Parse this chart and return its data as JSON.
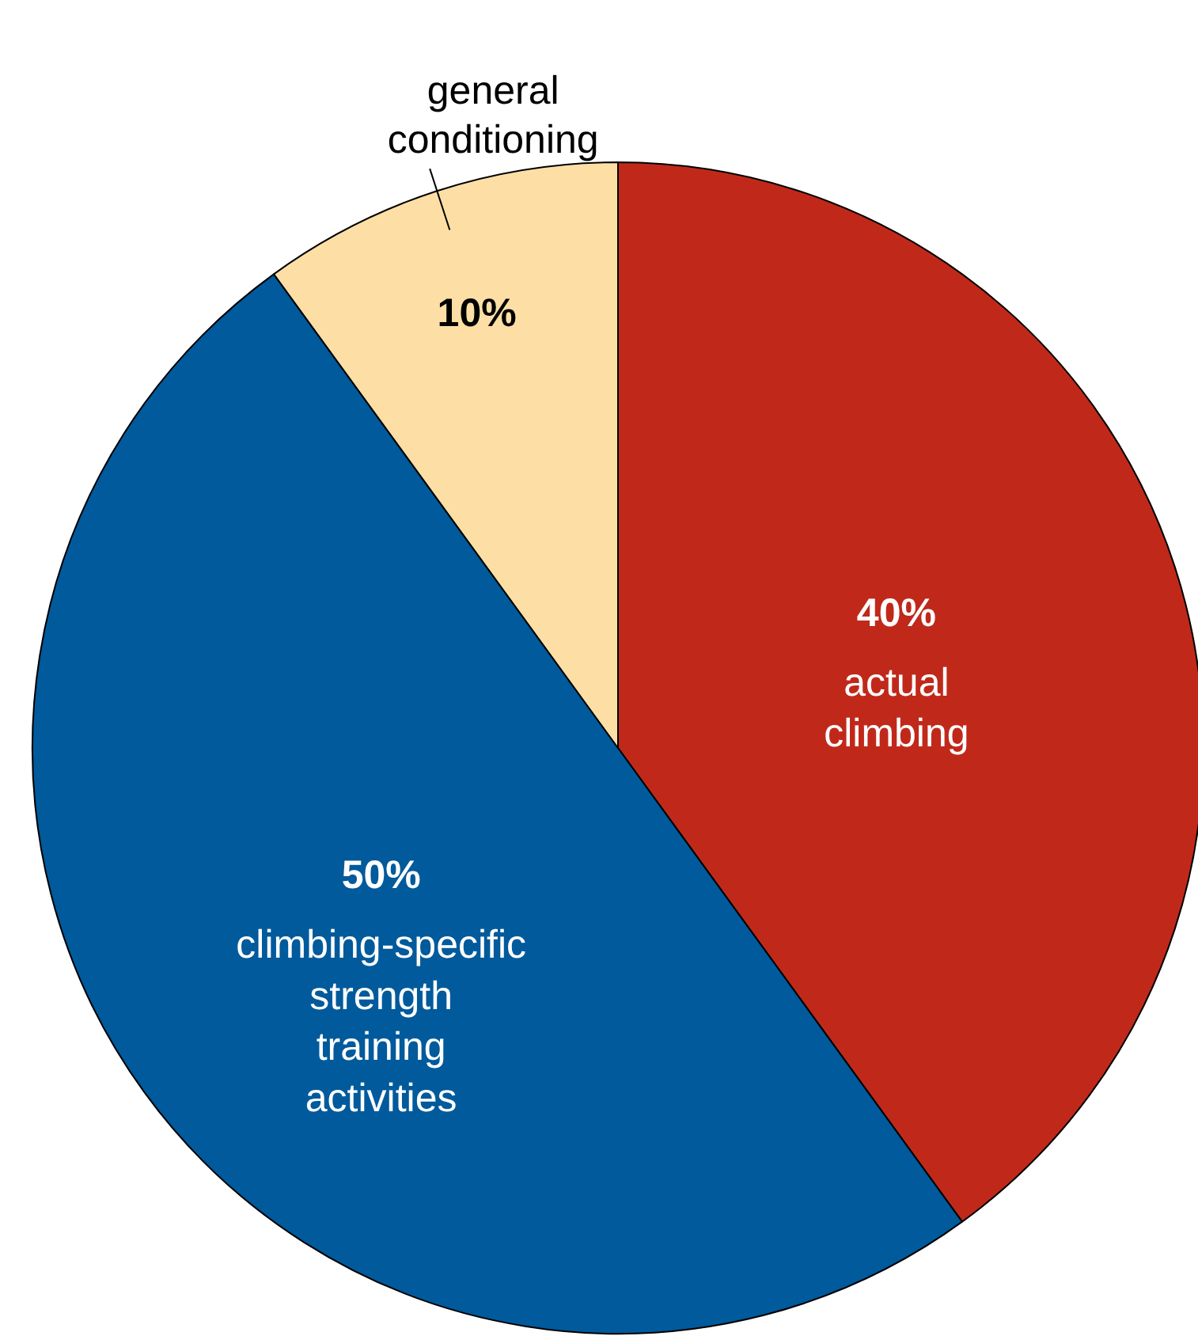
{
  "chart_data": {
    "type": "pie",
    "categories": [
      "actual climbing",
      "climbing-specific strength training activities",
      "general conditioning"
    ],
    "values": [
      40,
      50,
      10
    ],
    "colors": [
      "#c0291a",
      "#005a9c",
      "#fddfa5"
    ],
    "value_labels": [
      "40%",
      "50%",
      "10%"
    ]
  }
}
